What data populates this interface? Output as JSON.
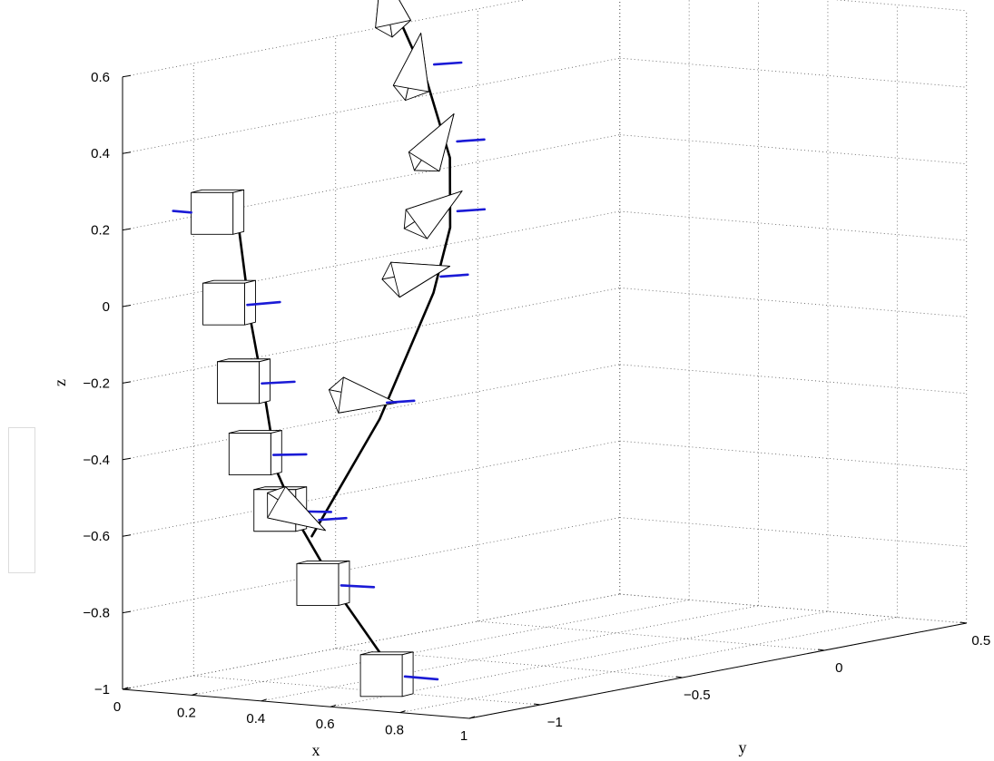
{
  "chart_data": {
    "type": "line3d",
    "xlabel": "x",
    "ylabel": "y",
    "zlabel": "z",
    "xlim": [
      0,
      1
    ],
    "ylim": [
      -1.25,
      0.5
    ],
    "zlim": [
      -1,
      0.6
    ],
    "grid": true,
    "x_ticks": [
      "0",
      "0.2",
      "0.4",
      "0.6",
      "0.8",
      "1"
    ],
    "y_ticks": [
      "−1",
      "−0.5",
      "0",
      "0.5"
    ],
    "z_ticks": [
      "−1",
      "−0.8",
      "−0.6",
      "−0.4",
      "−0.2",
      "0",
      "0.2",
      "0.4",
      "0.6"
    ],
    "series": [
      {
        "marker": "cube",
        "path": [
          {
            "x": 0.62,
            "y": -1.0,
            "z": -1.0
          },
          {
            "x": 0.42,
            "y": -0.98,
            "z": -0.78
          },
          {
            "x": 0.28,
            "y": -0.96,
            "z": -0.6
          },
          {
            "x": 0.2,
            "y": -0.95,
            "z": -0.46
          },
          {
            "x": 0.15,
            "y": -0.93,
            "z": -0.28
          },
          {
            "x": 0.1,
            "y": -0.92,
            "z": -0.08
          },
          {
            "x": 0.05,
            "y": -0.9,
            "z": 0.15
          }
        ]
      },
      {
        "marker": "pyramid",
        "path": [
          {
            "x": 0.3,
            "y": -0.95,
            "z": -0.62
          },
          {
            "x": 0.25,
            "y": -0.65,
            "z": -0.36
          },
          {
            "x": 0.2,
            "y": -0.4,
            "z": -0.07
          },
          {
            "x": 0.15,
            "y": -0.28,
            "z": 0.08
          },
          {
            "x": 0.1,
            "y": -0.22,
            "z": 0.25
          },
          {
            "x": 0.05,
            "y": -0.24,
            "z": 0.45
          },
          {
            "x": 0.0,
            "y": -0.28,
            "z": 0.62
          }
        ]
      }
    ]
  },
  "side_panel": {}
}
